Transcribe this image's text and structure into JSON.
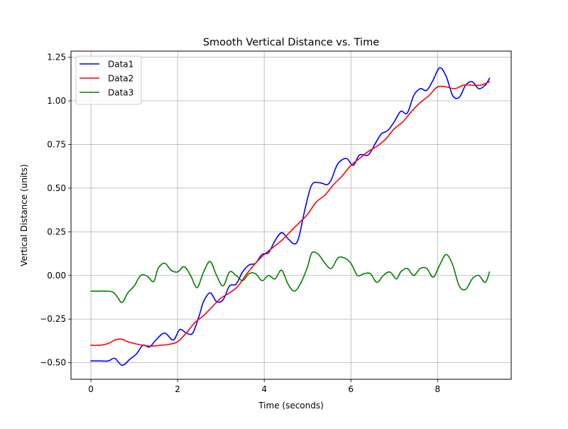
{
  "chart_data": {
    "type": "line",
    "title": "Smooth Vertical Distance vs. Time",
    "xlabel": "Time (seconds)",
    "ylabel": "Vertical Distance (units)",
    "xlim": [
      -0.46,
      9.7
    ],
    "ylim": [
      -0.595,
      1.285
    ],
    "xticks": [
      0,
      2,
      4,
      6,
      8
    ],
    "xtick_labels": [
      "0",
      "2",
      "4",
      "6",
      "8"
    ],
    "yticks": [
      -0.5,
      -0.25,
      0.0,
      0.25,
      0.5,
      0.75,
      1.0,
      1.25
    ],
    "ytick_labels": [
      "−0.50",
      "−0.25",
      "0.00",
      "0.25",
      "0.50",
      "0.75",
      "1.00",
      "1.25"
    ],
    "grid": true,
    "legend": {
      "position": "top-left"
    },
    "series": [
      {
        "name": "Data1",
        "color": "#0000ff",
        "x": [
          0,
          0.2,
          0.4,
          0.55,
          0.72,
          0.9,
          1.05,
          1.2,
          1.35,
          1.5,
          1.7,
          1.9,
          2.05,
          2.2,
          2.35,
          2.5,
          2.6,
          2.75,
          2.9,
          3.05,
          3.2,
          3.35,
          3.5,
          3.65,
          3.8,
          3.95,
          4.1,
          4.25,
          4.4,
          4.55,
          4.7,
          4.8,
          4.95,
          5.1,
          5.3,
          5.45,
          5.55,
          5.7,
          5.9,
          6.05,
          6.2,
          6.4,
          6.55,
          6.7,
          6.85,
          7.0,
          7.15,
          7.3,
          7.45,
          7.6,
          7.75,
          7.9,
          8.05,
          8.2,
          8.35,
          8.5,
          8.65,
          8.8,
          8.95,
          9.1,
          9.2
        ],
        "y": [
          -0.49,
          -0.49,
          -0.49,
          -0.475,
          -0.515,
          -0.48,
          -0.45,
          -0.4,
          -0.41,
          -0.37,
          -0.33,
          -0.37,
          -0.31,
          -0.33,
          -0.33,
          -0.23,
          -0.15,
          -0.1,
          -0.15,
          -0.14,
          -0.06,
          -0.05,
          0.02,
          0.06,
          0.07,
          0.12,
          0.13,
          0.2,
          0.245,
          0.21,
          0.18,
          0.22,
          0.39,
          0.52,
          0.53,
          0.52,
          0.55,
          0.64,
          0.67,
          0.63,
          0.69,
          0.69,
          0.75,
          0.81,
          0.83,
          0.88,
          0.94,
          0.93,
          1.03,
          1.07,
          1.06,
          1.12,
          1.19,
          1.14,
          1.03,
          1.02,
          1.09,
          1.11,
          1.07,
          1.09,
          1.13
        ]
      },
      {
        "name": "Data2",
        "color": "#ff0000",
        "x": [
          0,
          0.2,
          0.4,
          0.55,
          0.7,
          0.85,
          1.0,
          1.2,
          1.4,
          1.6,
          1.8,
          2.0,
          2.2,
          2.4,
          2.6,
          2.8,
          3.0,
          3.2,
          3.4,
          3.6,
          3.8,
          4.0,
          4.2,
          4.4,
          4.6,
          4.8,
          5.0,
          5.2,
          5.4,
          5.6,
          5.8,
          6.0,
          6.2,
          6.4,
          6.6,
          6.8,
          7.0,
          7.2,
          7.4,
          7.6,
          7.8,
          8.0,
          8.2,
          8.4,
          8.6,
          8.8,
          9.0,
          9.2
        ],
        "y": [
          -0.4,
          -0.4,
          -0.39,
          -0.37,
          -0.365,
          -0.38,
          -0.39,
          -0.4,
          -0.405,
          -0.4,
          -0.395,
          -0.38,
          -0.33,
          -0.27,
          -0.23,
          -0.18,
          -0.13,
          -0.1,
          -0.06,
          0.01,
          0.07,
          0.12,
          0.16,
          0.2,
          0.25,
          0.3,
          0.35,
          0.42,
          0.46,
          0.52,
          0.57,
          0.63,
          0.67,
          0.71,
          0.74,
          0.78,
          0.84,
          0.88,
          0.94,
          0.99,
          1.03,
          1.08,
          1.08,
          1.07,
          1.09,
          1.09,
          1.09,
          1.11
        ]
      },
      {
        "name": "Data3",
        "color": "#008000",
        "x": [
          0,
          0.2,
          0.35,
          0.5,
          0.6,
          0.72,
          0.85,
          1.0,
          1.15,
          1.3,
          1.45,
          1.55,
          1.7,
          1.85,
          2.0,
          2.15,
          2.3,
          2.45,
          2.6,
          2.75,
          2.9,
          3.05,
          3.2,
          3.35,
          3.5,
          3.65,
          3.8,
          3.95,
          4.1,
          4.25,
          4.4,
          4.55,
          4.7,
          4.85,
          5.0,
          5.1,
          5.25,
          5.4,
          5.55,
          5.7,
          5.85,
          6.0,
          6.15,
          6.3,
          6.45,
          6.6,
          6.75,
          6.9,
          7.05,
          7.15,
          7.3,
          7.45,
          7.6,
          7.75,
          7.9,
          8.05,
          8.2,
          8.35,
          8.5,
          8.65,
          8.8,
          8.95,
          9.1,
          9.2
        ],
        "y": [
          -0.09,
          -0.09,
          -0.09,
          -0.095,
          -0.12,
          -0.155,
          -0.1,
          -0.06,
          0.0,
          -0.005,
          -0.035,
          0.04,
          0.07,
          0.03,
          0.02,
          0.05,
          0.0,
          -0.07,
          0.02,
          0.08,
          0.0,
          -0.06,
          0.02,
          0.0,
          -0.03,
          0.01,
          0.01,
          -0.03,
          0.0,
          -0.02,
          0.03,
          -0.05,
          -0.09,
          -0.04,
          0.05,
          0.13,
          0.12,
          0.07,
          0.04,
          0.1,
          0.1,
          0.07,
          0.0,
          0.01,
          0.01,
          -0.04,
          0.0,
          0.02,
          -0.02,
          0.02,
          0.04,
          0.0,
          0.04,
          0.04,
          -0.01,
          0.06,
          0.12,
          0.06,
          -0.06,
          -0.08,
          -0.02,
          0.0,
          -0.04,
          0.02
        ]
      }
    ]
  }
}
